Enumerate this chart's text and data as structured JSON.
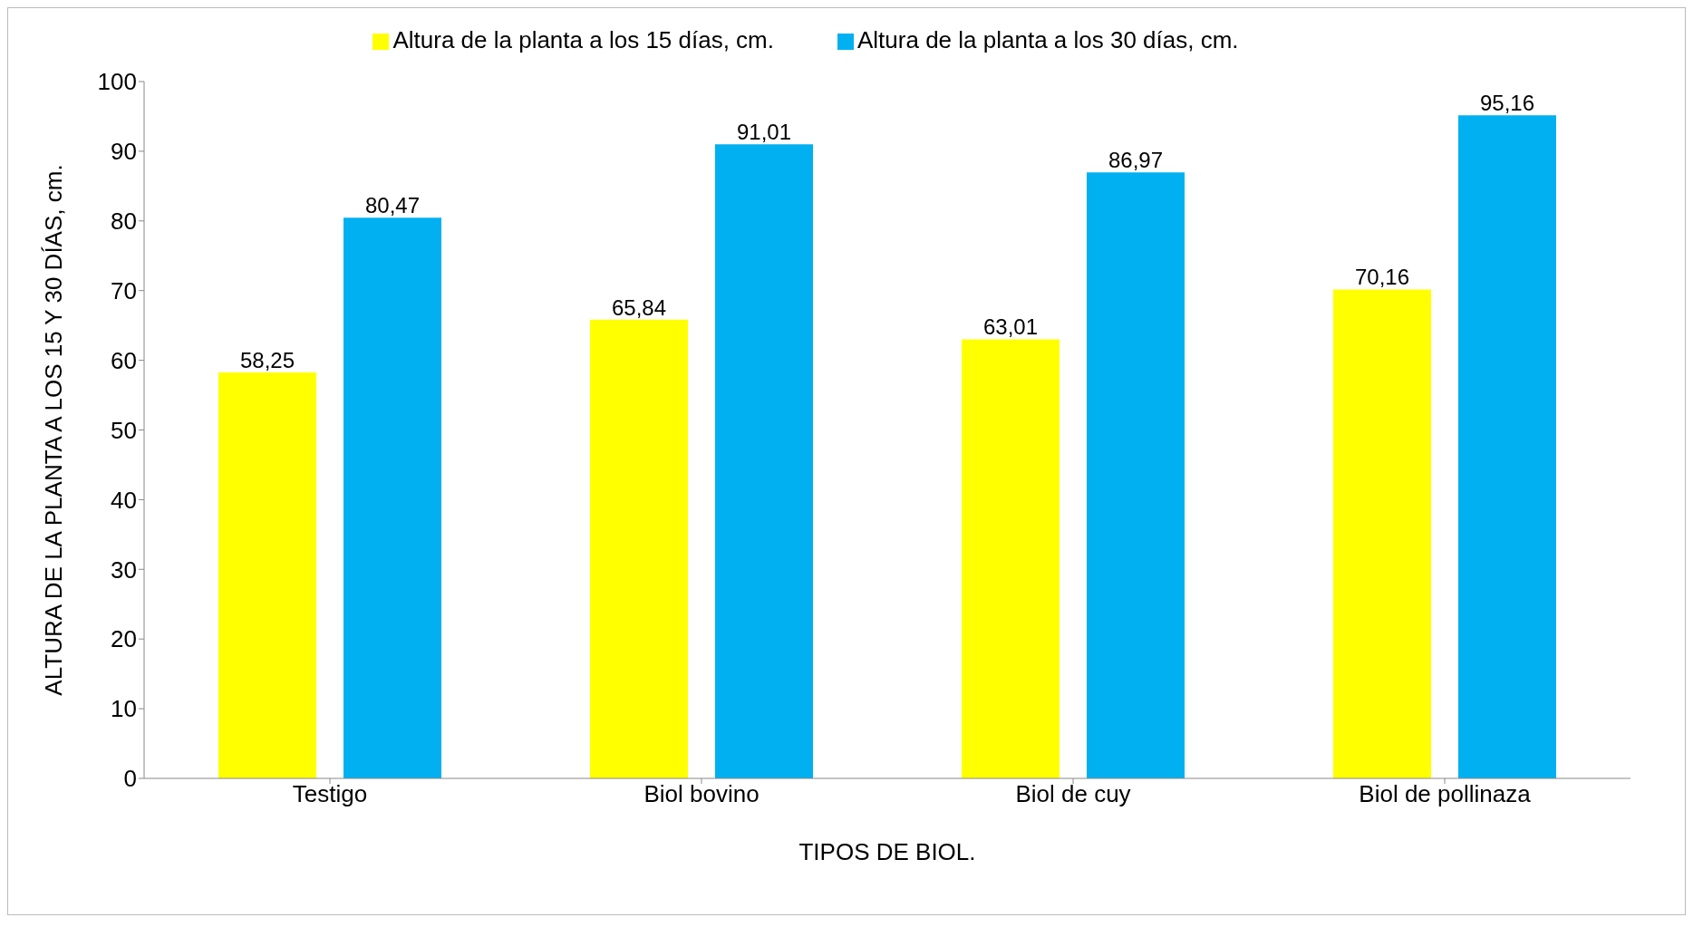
{
  "chart_data": {
    "type": "bar",
    "xlabel": "TIPOS DE BIOL.",
    "ylabel": "ALTURA DE LA PLANTA A LOS 15 Y 30 DÍAS, cm.",
    "categories": [
      "Testigo",
      "Biol bovino",
      "Biol de cuy",
      "Biol de pollinaza"
    ],
    "series": [
      {
        "name": "Altura de la planta a los 15 días, cm.",
        "color": "#ffff00",
        "values": [
          58.25,
          65.84,
          63.01,
          70.16
        ],
        "value_labels": [
          "58,25",
          "65,84",
          "63,01",
          "70,16"
        ]
      },
      {
        "name": "Altura de la planta a los 30 días, cm.",
        "color": "#00b0f0",
        "values": [
          80.47,
          91.01,
          86.97,
          95.16
        ],
        "value_labels": [
          "80,47",
          "91,01",
          "86,97",
          "95,16"
        ]
      }
    ],
    "ylim": [
      0,
      100
    ],
    "yticks": [
      0,
      10,
      20,
      30,
      40,
      50,
      60,
      70,
      80,
      90,
      100
    ],
    "legend": "top"
  }
}
